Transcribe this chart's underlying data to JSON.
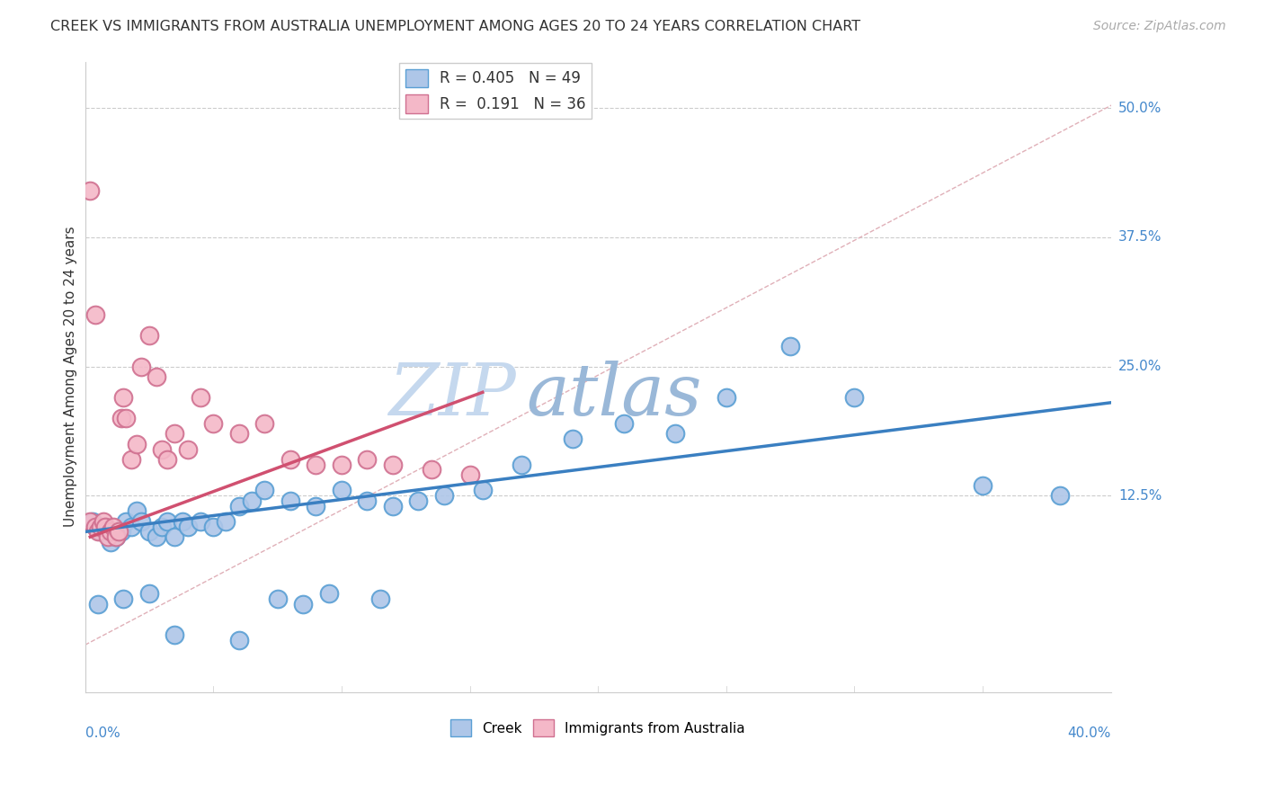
{
  "title": "CREEK VS IMMIGRANTS FROM AUSTRALIA UNEMPLOYMENT AMONG AGES 20 TO 24 YEARS CORRELATION CHART",
  "source": "Source: ZipAtlas.com",
  "ylabel": "Unemployment Among Ages 20 to 24 years",
  "ytick_values": [
    0.125,
    0.25,
    0.375,
    0.5
  ],
  "ytick_labels": [
    "12.5%",
    "25.0%",
    "37.5%",
    "50.0%"
  ],
  "xmin": 0.0,
  "xmax": 0.4,
  "ymin": -0.065,
  "ymax": 0.545,
  "creek_color": "#aec6e8",
  "creek_edge_color": "#5a9fd4",
  "immigrants_color": "#f4b8c8",
  "immigrants_edge_color": "#d07090",
  "trend_creek_color": "#3a7fc1",
  "trend_immigrants_color": "#d05070",
  "ref_line_color": "#e0b0b8",
  "watermark_zip_color": "#c8d8ec",
  "watermark_atlas_color": "#a8c8e0",
  "background_color": "#ffffff",
  "creek_x": [
    0.003,
    0.006,
    0.008,
    0.01,
    0.012,
    0.014,
    0.016,
    0.018,
    0.02,
    0.022,
    0.025,
    0.028,
    0.03,
    0.032,
    0.035,
    0.038,
    0.04,
    0.045,
    0.05,
    0.055,
    0.06,
    0.065,
    0.07,
    0.08,
    0.09,
    0.1,
    0.11,
    0.12,
    0.13,
    0.14,
    0.155,
    0.17,
    0.19,
    0.21,
    0.23,
    0.25,
    0.275,
    0.3,
    0.35,
    0.38,
    0.005,
    0.015,
    0.025,
    0.035,
    0.06,
    0.075,
    0.085,
    0.095,
    0.115
  ],
  "creek_y": [
    0.1,
    0.09,
    0.095,
    0.08,
    0.085,
    0.09,
    0.1,
    0.095,
    0.11,
    0.1,
    0.09,
    0.085,
    0.095,
    0.1,
    0.085,
    0.1,
    0.095,
    0.1,
    0.095,
    0.1,
    0.115,
    0.12,
    0.13,
    0.12,
    0.115,
    0.13,
    0.12,
    0.115,
    0.12,
    0.125,
    0.13,
    0.155,
    0.18,
    0.195,
    0.185,
    0.22,
    0.27,
    0.22,
    0.135,
    0.125,
    0.02,
    0.025,
    0.03,
    -0.01,
    -0.015,
    0.025,
    0.02,
    0.03,
    0.025
  ],
  "immigrants_x": [
    0.002,
    0.004,
    0.005,
    0.006,
    0.007,
    0.008,
    0.009,
    0.01,
    0.011,
    0.012,
    0.013,
    0.014,
    0.015,
    0.016,
    0.018,
    0.02,
    0.022,
    0.025,
    0.028,
    0.03,
    0.032,
    0.035,
    0.04,
    0.045,
    0.05,
    0.06,
    0.07,
    0.08,
    0.09,
    0.1,
    0.11,
    0.12,
    0.135,
    0.15,
    0.002,
    0.004
  ],
  "immigrants_y": [
    0.1,
    0.095,
    0.09,
    0.095,
    0.1,
    0.095,
    0.085,
    0.09,
    0.095,
    0.085,
    0.09,
    0.2,
    0.22,
    0.2,
    0.16,
    0.175,
    0.25,
    0.28,
    0.24,
    0.17,
    0.16,
    0.185,
    0.17,
    0.22,
    0.195,
    0.185,
    0.195,
    0.16,
    0.155,
    0.155,
    0.16,
    0.155,
    0.15,
    0.145,
    0.42,
    0.3
  ]
}
